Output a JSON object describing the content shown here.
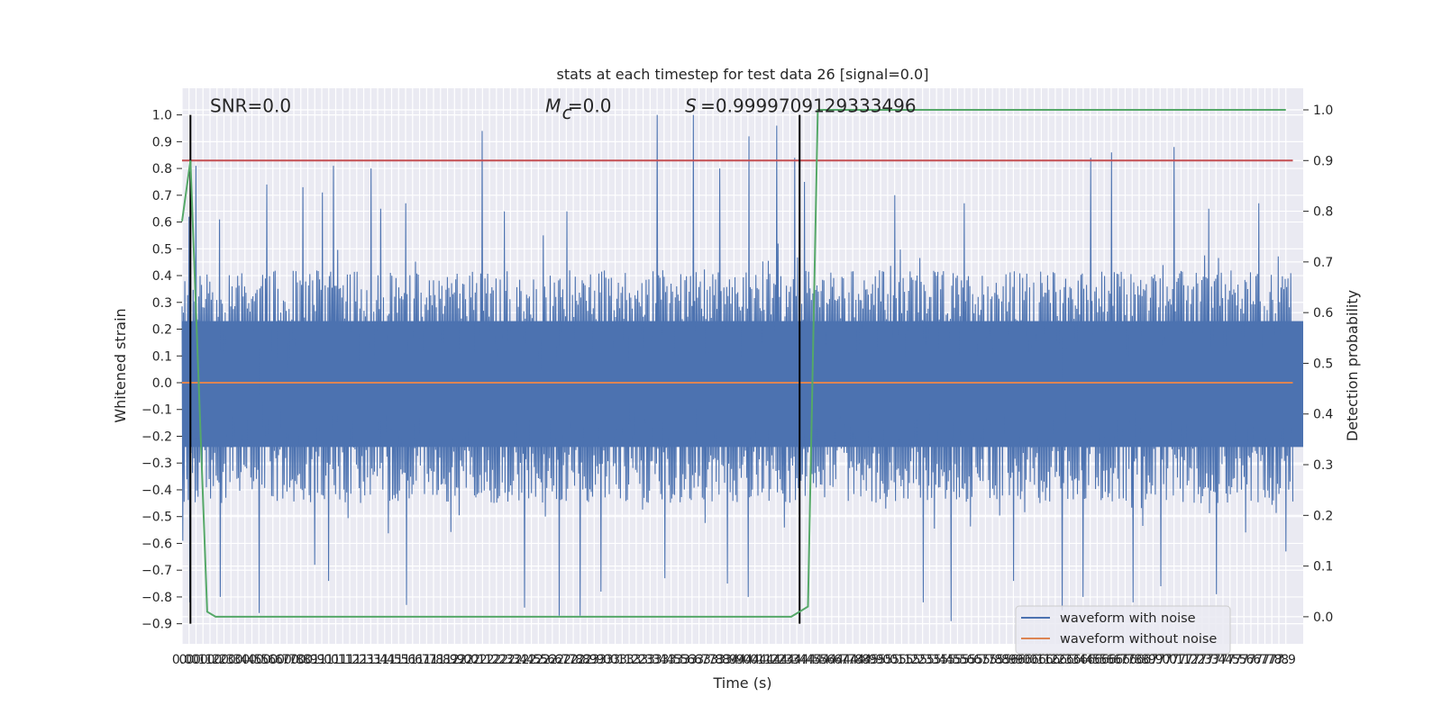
{
  "chart_data": {
    "type": "line",
    "title": "stats at each timestep for test data 26 [signal=0.0]",
    "xlabel": "Time (s)",
    "ylabel": "Whitened strain",
    "ylabel_right": "Detection probability",
    "xlim": [
      0.0,
      7.95
    ],
    "ylim": [
      -0.93,
      1.04
    ],
    "ylim_right": [
      -0.05,
      1.04
    ],
    "x_tick_step": 0.05,
    "x_ticks": [
      0.0,
      0.05,
      0.1,
      0.15,
      0.2,
      0.25,
      0.3,
      0.35,
      0.4,
      0.45,
      0.5,
      0.55,
      0.6,
      0.65,
      0.7,
      0.75,
      0.8,
      0.85,
      0.9,
      0.95,
      1.0,
      1.05,
      1.1,
      1.15,
      1.2,
      1.25,
      1.3,
      1.35,
      1.4,
      1.45,
      1.5,
      1.55,
      1.6,
      1.65,
      1.7,
      1.75,
      1.8,
      1.85,
      1.9,
      1.95,
      2.0,
      2.05,
      2.1,
      2.15,
      2.2,
      2.25,
      2.3,
      2.35,
      2.4,
      2.45,
      2.5,
      2.55,
      2.6,
      2.65,
      2.7,
      2.75,
      2.8,
      2.85,
      2.9,
      2.95,
      3.0,
      3.05,
      3.1,
      3.15,
      3.2,
      3.25,
      3.3,
      3.35,
      3.4,
      3.45,
      3.5,
      3.55,
      3.6,
      3.65,
      3.7,
      3.75,
      3.8,
      3.85,
      3.9,
      3.95,
      4.0,
      4.05,
      4.1,
      4.15,
      4.2,
      4.25,
      4.3,
      4.35,
      4.4,
      4.45,
      4.5,
      4.55,
      4.6,
      4.65,
      4.7,
      4.75,
      4.8,
      4.85,
      4.9,
      4.95,
      5.0,
      5.05,
      5.1,
      5.15,
      5.2,
      5.25,
      5.3,
      5.35,
      5.4,
      5.45,
      5.5,
      5.55,
      5.6,
      5.65,
      5.7,
      5.75,
      5.8,
      5.85,
      5.9,
      5.95,
      6.0,
      6.05,
      6.1,
      6.15,
      6.2,
      6.25,
      6.3,
      6.35,
      6.4,
      6.45,
      6.5,
      6.55,
      6.6,
      6.65,
      6.7,
      6.75,
      6.8,
      6.85,
      6.9,
      6.95,
      7.0,
      7.05,
      7.1,
      7.15,
      7.2,
      7.25,
      7.3,
      7.35,
      7.4,
      7.45,
      7.5,
      7.55,
      7.6,
      7.65,
      7.7,
      7.75,
      7.8,
      7.85,
      7.9
    ],
    "x_tick_labels": [
      "0.0",
      "0.0",
      "0.1",
      "0.1",
      "0.2",
      "0.2",
      "0.3",
      "0.3",
      "0.4",
      "0.4",
      "0.5",
      "0.5",
      "0.6",
      "0.6",
      "0.7",
      "0.7",
      "0.8",
      "0.8",
      "0.9",
      "0.9",
      "1.0",
      "1.0",
      "1.1",
      "1.1",
      "1.2",
      "1.2",
      "1.3",
      "1.3",
      "1.4",
      "1.4",
      "1.5",
      "1.5",
      "1.6",
      "1.6",
      "1.7",
      "1.7",
      "1.8",
      "1.8",
      "1.9",
      "1.9",
      "2.0",
      "2.0",
      "2.1",
      "2.1",
      "2.2",
      "2.2",
      "2.3",
      "2.3",
      "2.4",
      "2.4",
      "2.5",
      "2.5",
      "2.6",
      "2.6",
      "2.7",
      "2.7",
      "2.8",
      "2.8",
      "2.9",
      "2.9",
      "3.0",
      "3.0",
      "3.1",
      "3.1",
      "3.2",
      "3.2",
      "3.3",
      "3.3",
      "3.4",
      "3.4",
      "3.5",
      "3.5",
      "3.6",
      "3.6",
      "3.7",
      "3.7",
      "3.8",
      "3.8",
      "3.9",
      "3.9",
      "4.0",
      "4.0",
      "4.1",
      "4.1",
      "4.2",
      "4.2",
      "4.3",
      "4.3",
      "4.4",
      "4.4",
      "4.5",
      "4.5",
      "4.6",
      "4.6",
      "4.7",
      "4.7",
      "4.8",
      "4.8",
      "4.9",
      "4.9",
      "5.0",
      "5.0",
      "5.1",
      "5.1",
      "5.2",
      "5.2",
      "5.3",
      "5.3",
      "5.4",
      "5.4",
      "5.5",
      "5.5",
      "5.6",
      "5.6",
      "5.7",
      "5.7",
      "5.8",
      "5.8",
      "5.9",
      "5.9",
      "6.0",
      "6.0",
      "6.1",
      "6.1",
      "6.2",
      "6.2",
      "6.3",
      "6.3",
      "6.4",
      "6.4",
      "6.5",
      "6.5",
      "6.6",
      "6.6",
      "6.7",
      "6.7",
      "6.8",
      "6.8",
      "6.9",
      "6.9",
      "7.0",
      "7.0",
      "7.1",
      "7.1",
      "7.2",
      "7.2",
      "7.3",
      "7.3",
      "7.4",
      "7.4",
      "7.5",
      "7.5",
      "7.6",
      "7.6",
      "7.7",
      "7.7",
      "7.8",
      "7.8",
      "7.9"
    ],
    "y_ticks": [
      1.0,
      0.9,
      0.8,
      0.7,
      0.6,
      0.5,
      0.4,
      0.3,
      0.2,
      0.1,
      0.0,
      -0.1,
      -0.2,
      -0.3,
      -0.4,
      -0.5,
      -0.6,
      -0.7,
      -0.8,
      -0.9
    ],
    "y_tick_labels": [
      "1.0",
      "0.9",
      "0.8",
      "0.7",
      "0.6",
      "0.5",
      "0.4",
      "0.3",
      "0.2",
      "0.1",
      "0.0",
      "−0.1",
      "−0.2",
      "−0.3",
      "−0.4",
      "−0.5",
      "−0.6",
      "−0.7",
      "−0.8",
      "−0.9"
    ],
    "y_ticks_right": [
      1.0,
      0.9,
      0.8,
      0.7,
      0.6,
      0.5,
      0.4,
      0.3,
      0.2,
      0.1,
      0.0
    ],
    "y_tick_labels_right": [
      "1.0",
      "0.9",
      "0.8",
      "0.7",
      "0.6",
      "0.5",
      "0.4",
      "0.3",
      "0.2",
      "0.1",
      "0.0"
    ],
    "grid": true,
    "legend_position": "lower-right",
    "annotations": [
      {
        "name": "snr-annotation",
        "text": "SNR=0.0",
        "x": 0.2,
        "y": 1.01
      },
      {
        "name": "mc-annotation-prefix",
        "text": "M",
        "x": 2.6,
        "y": 1.01
      },
      {
        "name": "mc-annotation-subscript",
        "text": "c",
        "x": 2.72,
        "y": 0.985
      },
      {
        "name": "mc-annotation-value",
        "text": "=0.0",
        "x": 2.76,
        "y": 1.01
      },
      {
        "name": "s-annotation-prefix",
        "text": "S",
        "x": 3.6,
        "y": 1.01
      },
      {
        "name": "s-annotation-value",
        "text": "=0.9999709129333496",
        "x": 3.71,
        "y": 1.01
      }
    ],
    "series": [
      {
        "name": "waveform with noise",
        "color": "#4c72b0",
        "axis": "left",
        "style": "noise",
        "envelope": {
          "typical_upper": 0.42,
          "typical_lower": -0.45,
          "peaks": [
            [
              0.05,
              0.62
            ],
            [
              0.1,
              0.81
            ],
            [
              0.27,
              0.61
            ],
            [
              0.6,
              0.74
            ],
            [
              0.86,
              0.73
            ],
            [
              1.0,
              0.71
            ],
            [
              1.08,
              0.81
            ],
            [
              1.35,
              0.8
            ],
            [
              1.42,
              0.65
            ],
            [
              1.6,
              0.67
            ],
            [
              2.15,
              0.94
            ],
            [
              2.3,
              0.64
            ],
            [
              2.58,
              0.55
            ],
            [
              2.75,
              0.64
            ],
            [
              3.4,
              1.0
            ],
            [
              3.66,
              1.0
            ],
            [
              3.85,
              0.8
            ],
            [
              4.05,
              0.92
            ],
            [
              4.25,
              0.96
            ],
            [
              4.38,
              0.84
            ],
            [
              4.45,
              0.75
            ],
            [
              5.1,
              0.7
            ],
            [
              5.6,
              0.67
            ],
            [
              6.5,
              0.84
            ],
            [
              6.65,
              0.86
            ],
            [
              7.1,
              0.88
            ],
            [
              7.35,
              0.65
            ],
            [
              7.7,
              0.67
            ]
          ],
          "troughs": [
            [
              0.0,
              -0.59
            ],
            [
              0.05,
              -0.82
            ],
            [
              0.27,
              -0.8
            ],
            [
              0.55,
              -0.86
            ],
            [
              0.95,
              -0.68
            ],
            [
              1.05,
              -0.74
            ],
            [
              1.6,
              -0.83
            ],
            [
              2.45,
              -0.84
            ],
            [
              2.7,
              -0.87
            ],
            [
              2.85,
              -0.87
            ],
            [
              3.0,
              -0.78
            ],
            [
              3.45,
              -0.73
            ],
            [
              3.9,
              -0.75
            ],
            [
              4.05,
              -0.8
            ],
            [
              5.3,
              -0.82
            ],
            [
              5.5,
              -0.89
            ],
            [
              5.95,
              -0.74
            ],
            [
              6.3,
              -0.85
            ],
            [
              6.45,
              -0.8
            ],
            [
              6.8,
              -0.82
            ],
            [
              7.0,
              -0.76
            ],
            [
              7.4,
              -0.79
            ],
            [
              7.9,
              -0.63
            ]
          ]
        }
      },
      {
        "name": "waveform without noise",
        "color": "#dd8452",
        "axis": "left",
        "x": [
          0.0,
          7.95
        ],
        "values": [
          0.0,
          0.0
        ]
      },
      {
        "name": "Detection probability",
        "color": "#55a868",
        "axis": "right",
        "in_legend": false,
        "x": [
          0.0,
          0.06,
          0.18,
          0.24,
          4.36,
          4.48,
          4.55,
          7.9
        ],
        "values": [
          0.78,
          0.9,
          0.01,
          0.0,
          0.0,
          0.02,
          1.0,
          1.0
        ]
      },
      {
        "name": "threshold",
        "color": "#c44e52",
        "axis": "right",
        "in_legend": false,
        "x": [
          0.0,
          7.95
        ],
        "values": [
          0.9,
          0.9
        ]
      }
    ],
    "vertical_lines": [
      {
        "name": "window-start-marker",
        "x": 0.06,
        "y_from": -0.9,
        "y_to": 1.0,
        "color": "#000000"
      },
      {
        "name": "window-end-marker",
        "x": 4.42,
        "y_from": -0.9,
        "y_to": 1.0,
        "color": "#000000"
      }
    ]
  }
}
